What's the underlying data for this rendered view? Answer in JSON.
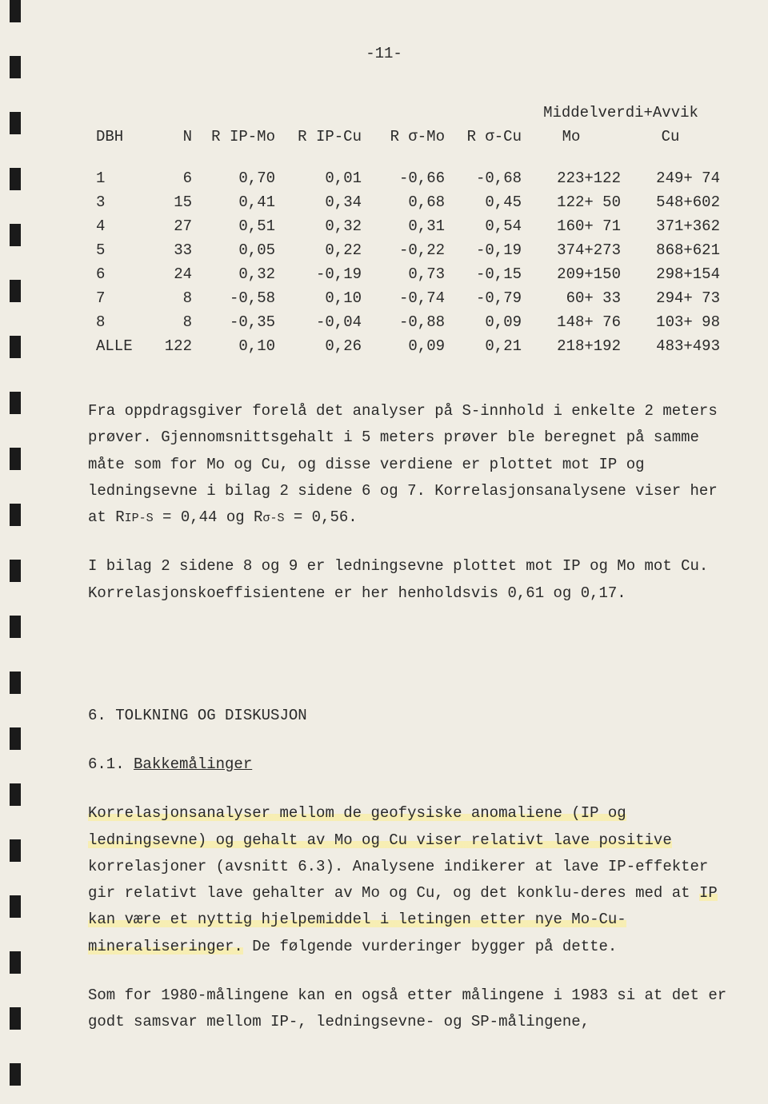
{
  "page_number": "-11-",
  "table": {
    "group_header": "Middelverdi+Avvik",
    "columns": {
      "dbh": "DBH",
      "n": "N",
      "r_ip_mo": "R IP-Mo",
      "r_ip_cu": "R IP-Cu",
      "r_sigma_mo": "R σ-Mo",
      "r_sigma_cu": "R σ-Cu",
      "mo": "Mo",
      "cu": "Cu"
    },
    "rows": [
      {
        "dbh": "1",
        "n": "6",
        "r1": "0,70",
        "r2": "0,01",
        "r3": "-0,66",
        "r4": "-0,68",
        "mo": "223+122",
        "cu": "249+ 74"
      },
      {
        "dbh": "3",
        "n": "15",
        "r1": "0,41",
        "r2": "0,34",
        "r3": "0,68",
        "r4": "0,45",
        "mo": "122+ 50",
        "cu": "548+602"
      },
      {
        "dbh": "4",
        "n": "27",
        "r1": "0,51",
        "r2": "0,32",
        "r3": "0,31",
        "r4": "0,54",
        "mo": "160+ 71",
        "cu": "371+362"
      },
      {
        "dbh": "5",
        "n": "33",
        "r1": "0,05",
        "r2": "0,22",
        "r3": "-0,22",
        "r4": "-0,19",
        "mo": "374+273",
        "cu": "868+621"
      },
      {
        "dbh": "6",
        "n": "24",
        "r1": "0,32",
        "r2": "-0,19",
        "r3": "0,73",
        "r4": "-0,15",
        "mo": "209+150",
        "cu": "298+154"
      },
      {
        "dbh": "7",
        "n": "8",
        "r1": "-0,58",
        "r2": "0,10",
        "r3": "-0,74",
        "r4": "-0,79",
        "mo": "60+ 33",
        "cu": "294+ 73"
      },
      {
        "dbh": "8",
        "n": "8",
        "r1": "-0,35",
        "r2": "-0,04",
        "r3": "-0,88",
        "r4": "0,09",
        "mo": "148+ 76",
        "cu": "103+ 98"
      },
      {
        "dbh": "ALLE",
        "n": "122",
        "r1": "0,10",
        "r2": "0,26",
        "r3": "0,09",
        "r4": "0,21",
        "mo": "218+192",
        "cu": "483+493"
      }
    ]
  },
  "p1_a": "Fra oppdragsgiver forelå det analyser på S-innhold i enkelte 2 meters prøver.  Gjennomsnittsgehalt i 5 meters prøver ble beregnet på samme måte som for Mo og Cu, og disse verdiene er plottet mot IP og ledningsevne i bilag 2 sidene 6 og 7. Korrelasjonsanalysene viser her at R",
  "p1_b": "IP-S",
  "p1_c": " = 0,44 og R",
  "p1_d": "σ-S",
  "p1_e": " = 0,56.",
  "p2": "I bilag 2 sidene 8 og 9 er ledningsevne plottet mot IP og Mo mot Cu.  Korrelasjonskoeffisientene er her henholdsvis 0,61 og 0,17.",
  "section_heading": "6. TOLKNING OG DISKUSJON",
  "sub_num": "6.1. ",
  "sub_title": "Bakkemålinger",
  "p3_a": "Korrelasjonsanalyser mellom de geofysiske anomaliene (IP og ledningsevne) og gehalt av Mo og Cu viser relativt lave positive",
  "p3_b": " korrelasjoner (avsnitt 6.3).  Analysene indikerer at lave IP-effekter gir relativt lave gehalter av Mo og Cu, og det konklu-deres med at ",
  "p3_c": "IP kan være et nyttig hjelpemiddel i letingen etter nye Mo-Cu-mineraliseringer.",
  "p3_d": "  De følgende vurderinger bygger på dette.",
  "p4": "Som for 1980-målingene kan en også etter målingene i 1983 si at det er godt samsvar mellom IP-, ledningsevne- og SP-målingene,"
}
